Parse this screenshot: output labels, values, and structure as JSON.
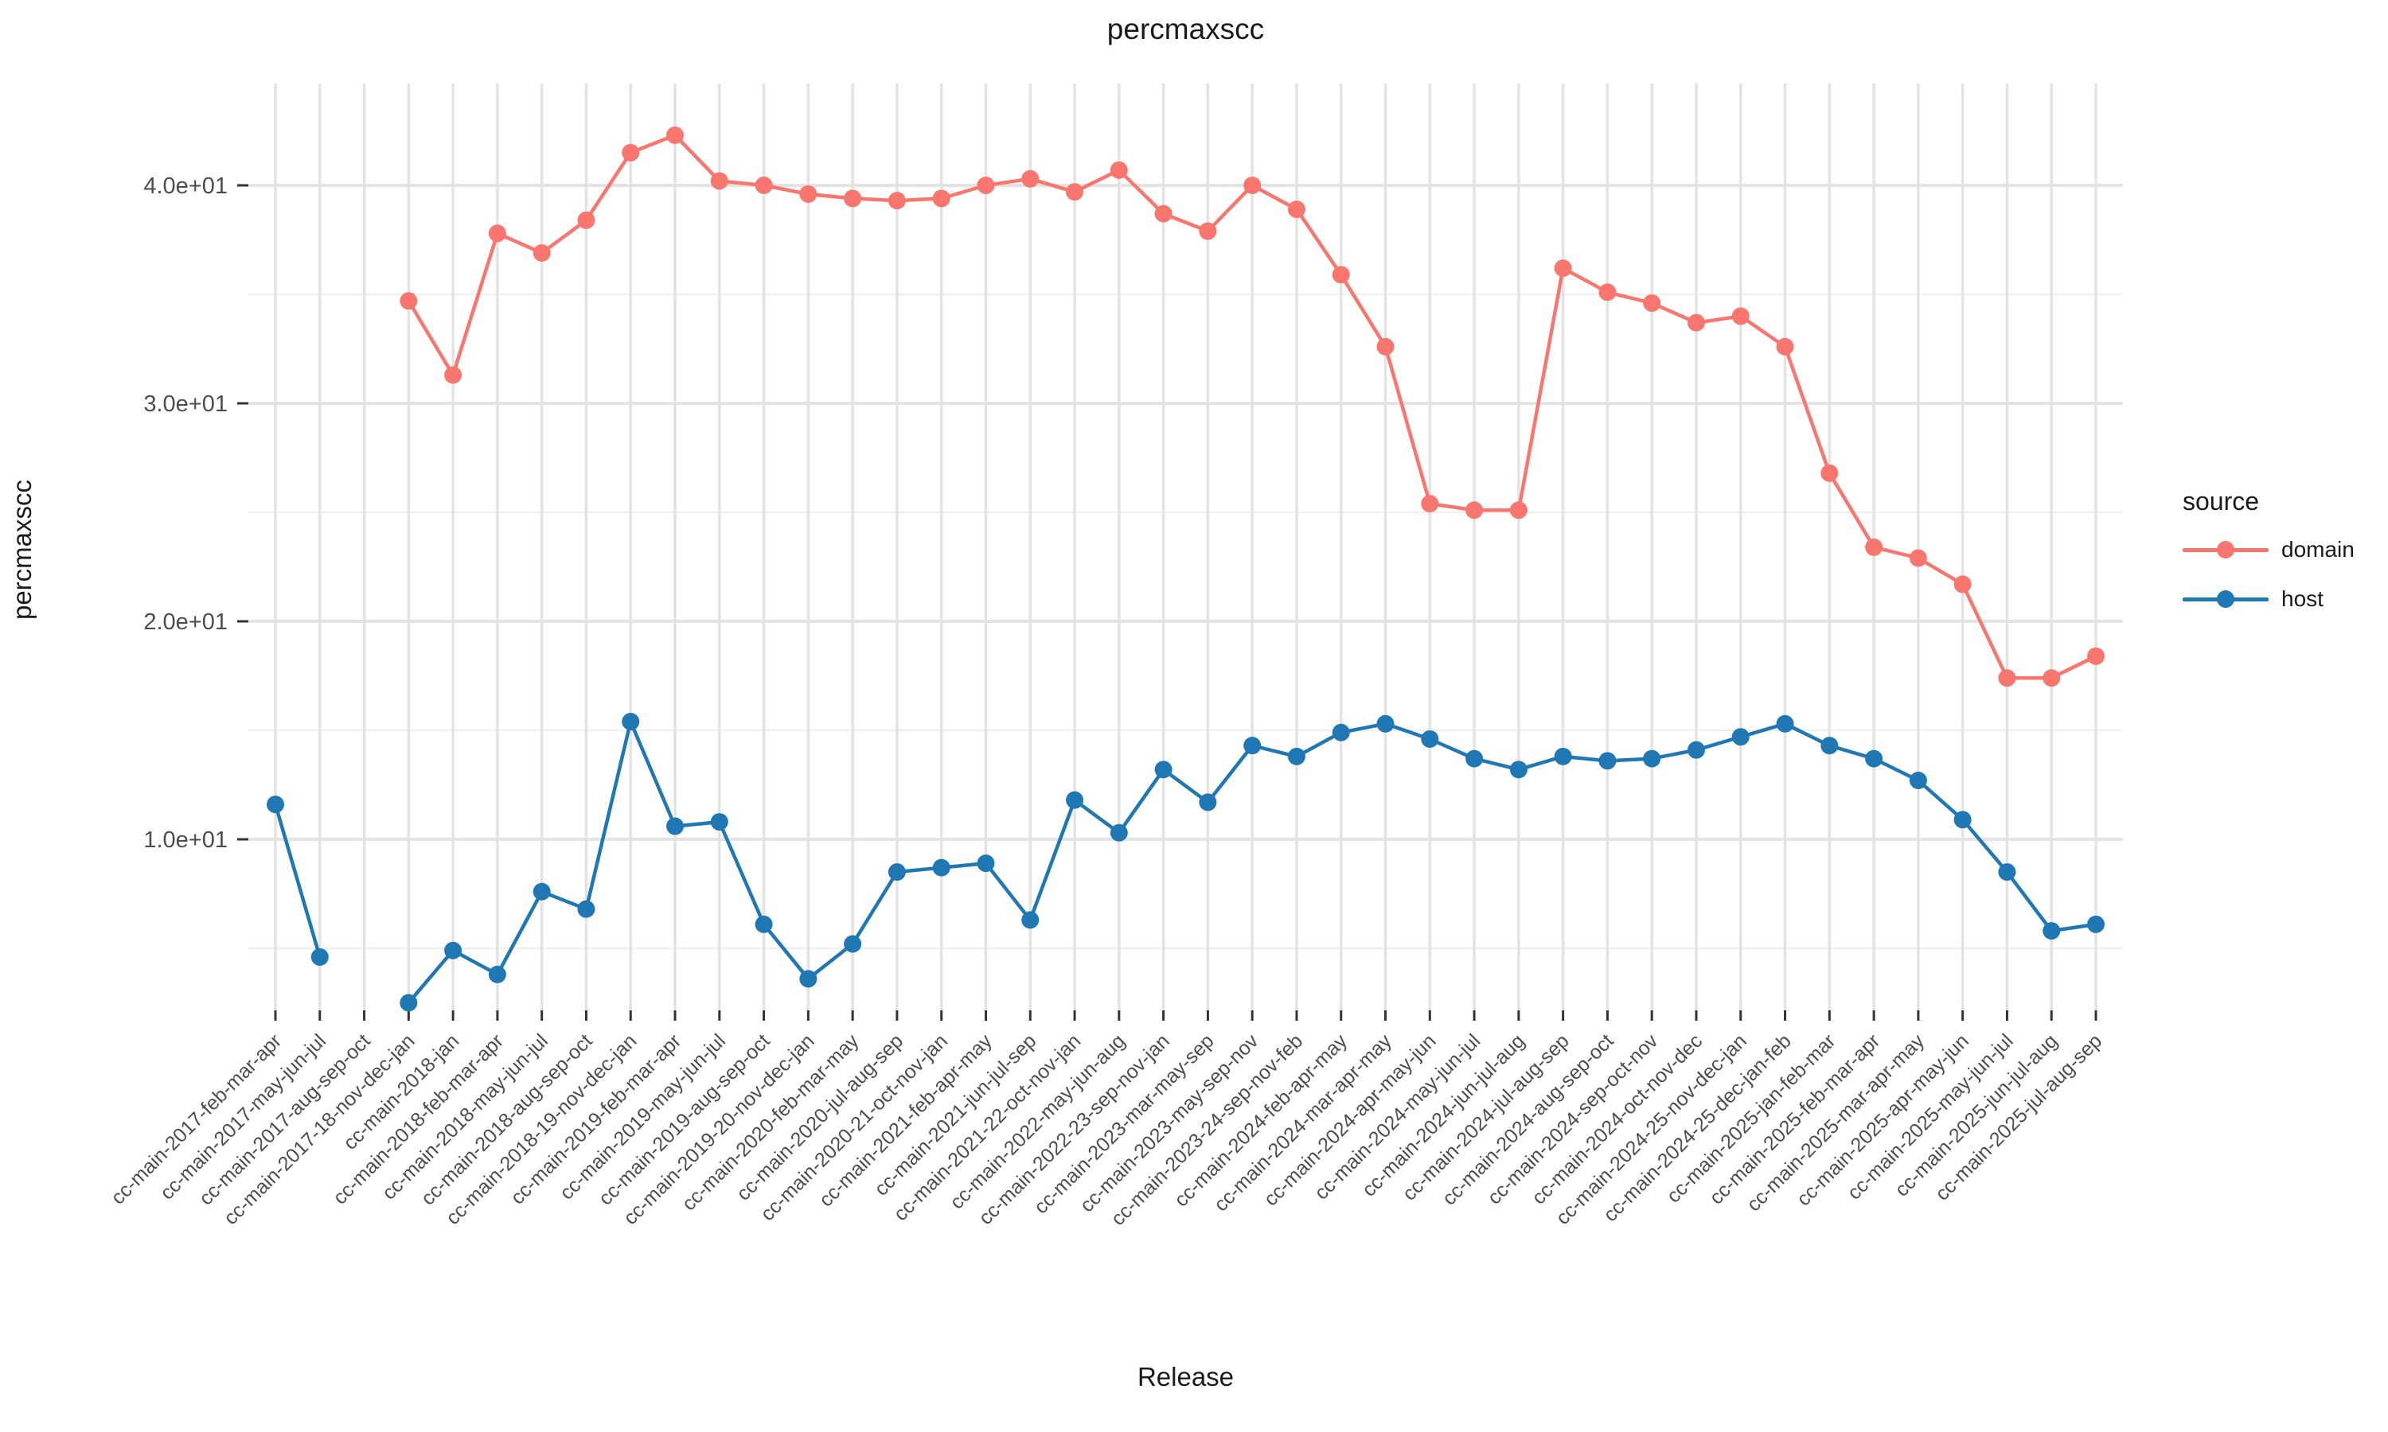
{
  "title": "percmaxscc",
  "chart_data": {
    "type": "line",
    "title": "percmaxscc",
    "xlabel": "Release",
    "ylabel": "percmaxscc",
    "legend_title": "source",
    "legend_position": "right",
    "grid": true,
    "ylim": [
      2.0,
      44.8
    ],
    "y_ticks": [
      {
        "value": 10,
        "label": "1.0e+01"
      },
      {
        "value": 20,
        "label": "2.0e+01"
      },
      {
        "value": 30,
        "label": "3.0e+01"
      },
      {
        "value": 40,
        "label": "4.0e+01"
      }
    ],
    "y_minor_ticks": [
      5,
      15,
      25,
      35
    ],
    "categories": [
      "cc-main-2017-feb-mar-apr",
      "cc-main-2017-may-jun-jul",
      "cc-main-2017-aug-sep-oct",
      "cc-main-2017-18-nov-dec-jan",
      "cc-main-2018-jan",
      "cc-main-2018-feb-mar-apr",
      "cc-main-2018-may-jun-jul",
      "cc-main-2018-aug-sep-oct",
      "cc-main-2018-19-nov-dec-jan",
      "cc-main-2019-feb-mar-apr",
      "cc-main-2019-may-jun-jul",
      "cc-main-2019-aug-sep-oct",
      "cc-main-2019-20-nov-dec-jan",
      "cc-main-2020-feb-mar-may",
      "cc-main-2020-jul-aug-sep",
      "cc-main-2020-21-oct-nov-jan",
      "cc-main-2021-feb-apr-may",
      "cc-main-2021-jun-jul-sep",
      "cc-main-2021-22-oct-nov-jan",
      "cc-main-2022-may-jun-aug",
      "cc-main-2022-23-sep-nov-jan",
      "cc-main-2023-mar-may-sep",
      "cc-main-2023-may-sep-nov",
      "cc-main-2023-24-sep-nov-feb",
      "cc-main-2024-feb-apr-may",
      "cc-main-2024-mar-apr-may",
      "cc-main-2024-apr-may-jun",
      "cc-main-2024-may-jun-jul",
      "cc-main-2024-jun-jul-aug",
      "cc-main-2024-jul-aug-sep",
      "cc-main-2024-aug-sep-oct",
      "cc-main-2024-sep-oct-nov",
      "cc-main-2024-oct-nov-dec",
      "cc-main-2024-25-nov-dec-jan",
      "cc-main-2024-25-dec-jan-feb",
      "cc-main-2025-jan-feb-mar",
      "cc-main-2025-feb-mar-apr",
      "cc-main-2025-mar-apr-may",
      "cc-main-2025-apr-may-jun",
      "cc-main-2025-may-jun-jul",
      "cc-main-2025-jun-jul-aug",
      "cc-main-2025-jul-aug-sep"
    ],
    "series": [
      {
        "name": "domain",
        "color": "#F8766D",
        "values": [
          null,
          null,
          null,
          34.7,
          31.3,
          37.8,
          36.9,
          38.4,
          41.5,
          42.3,
          40.2,
          40.0,
          39.6,
          39.4,
          39.3,
          39.4,
          40.0,
          40.3,
          39.7,
          40.7,
          38.7,
          37.9,
          40.0,
          38.9,
          35.9,
          32.6,
          25.4,
          25.1,
          25.1,
          36.2,
          35.1,
          34.6,
          33.7,
          34.0,
          32.6,
          26.8,
          23.4,
          22.9,
          21.7,
          17.4,
          17.4,
          18.4
        ]
      },
      {
        "name": "host",
        "color": "#1F77B4",
        "values": [
          11.6,
          4.6,
          null,
          2.5,
          4.9,
          3.8,
          7.6,
          6.8,
          15.4,
          10.6,
          10.8,
          6.1,
          3.6,
          5.2,
          8.5,
          8.7,
          8.9,
          6.3,
          11.8,
          10.3,
          13.2,
          11.7,
          14.3,
          13.8,
          14.9,
          15.3,
          14.6,
          13.7,
          13.2,
          13.8,
          13.6,
          13.7,
          14.1,
          14.7,
          15.3,
          14.3,
          13.7,
          12.7,
          10.9,
          8.5,
          5.8,
          6.1
        ]
      }
    ]
  }
}
